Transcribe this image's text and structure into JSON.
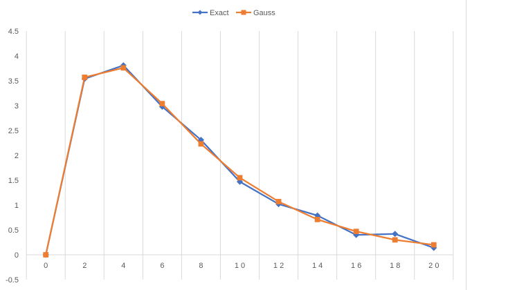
{
  "chart_data": {
    "type": "line",
    "title": "",
    "xlabel": "",
    "ylabel": "",
    "x": [
      0,
      2,
      4,
      6,
      8,
      10,
      12,
      14,
      16,
      18,
      20
    ],
    "x_tick_labels": [
      "0",
      "2",
      "4",
      "6",
      "8",
      "1 0",
      "1 2",
      "1 4",
      "1 6",
      "1 8",
      "2 0"
    ],
    "ylim": [
      -0.5,
      4.5
    ],
    "y_ticks": [
      -0.5,
      0,
      0.5,
      1,
      1.5,
      2,
      2.5,
      3,
      3.5,
      4,
      4.5
    ],
    "y_tick_labels": [
      "-0.5",
      "0",
      "0.5",
      "1",
      "1.5",
      "2",
      "2.5",
      "3",
      "3.5",
      "4",
      "4.5"
    ],
    "grid": "vertical",
    "legend": "top",
    "series": [
      {
        "name": "Exact",
        "color": "#4472C4",
        "marker": "diamond",
        "values": [
          0,
          3.54,
          3.81,
          2.98,
          2.31,
          1.47,
          1.02,
          0.79,
          0.4,
          0.42,
          0.14
        ]
      },
      {
        "name": "Gauss",
        "color": "#ED7D31",
        "marker": "square",
        "values": [
          0,
          3.57,
          3.76,
          3.04,
          2.23,
          1.55,
          1.07,
          0.71,
          0.47,
          0.3,
          0.2
        ]
      }
    ]
  }
}
